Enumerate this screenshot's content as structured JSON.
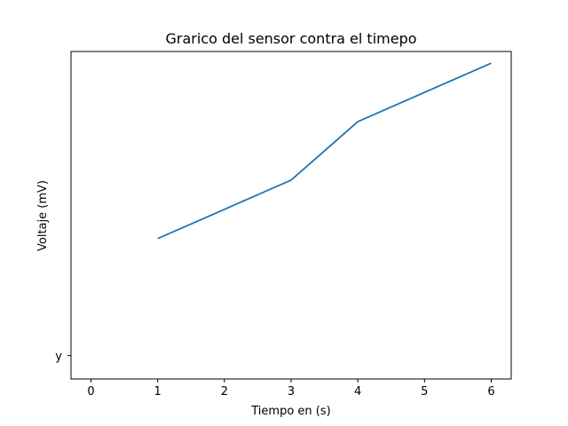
{
  "chart_data": {
    "type": "line",
    "title": "Grarico del sensor contra el timepo",
    "xlabel": "Tiempo en (s)",
    "ylabel": "Voltaje (mV)",
    "x_ticks": [
      0,
      1,
      2,
      3,
      4,
      5,
      6
    ],
    "x_tick_labels": [
      "0",
      "1",
      "2",
      "3",
      "4",
      "5",
      "6"
    ],
    "y_ticks": [
      "y"
    ],
    "xlim": [
      -0.3,
      6.3
    ],
    "series": [
      {
        "x": [
          1,
          3,
          4,
          6
        ],
        "y": [
          2,
          3,
          4,
          5
        ],
        "color": "#1f77b4"
      }
    ],
    "y_range": [
      -0.4,
      5.2
    ],
    "grid": false
  }
}
